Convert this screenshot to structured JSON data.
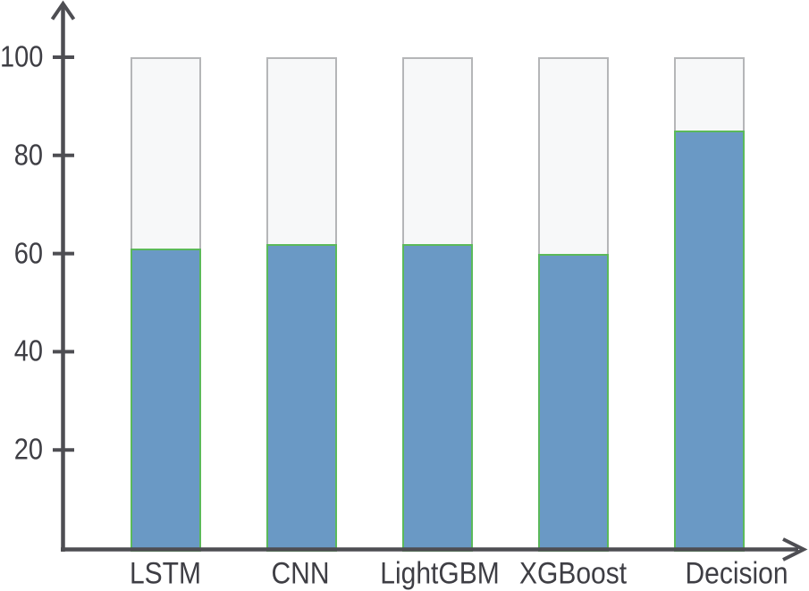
{
  "chart_data": {
    "type": "bar",
    "title": "",
    "xlabel": "",
    "ylabel": "",
    "categories": [
      "LSTM",
      "CNN",
      "LightGBM",
      "XGBoost",
      "Decision"
    ],
    "values": [
      61,
      62,
      62,
      60,
      85
    ],
    "background_bar_value": 100,
    "yticks": [
      20,
      40,
      60,
      80,
      100
    ],
    "ylim": [
      0,
      100
    ],
    "grid": false,
    "legend": null,
    "colors": {
      "bar_fill": "#6A99C5",
      "bar_border": "#5BB95A",
      "empty_fill": "#F7F8F9",
      "empty_border": "#B5B6B8",
      "axis": "#4E4E53",
      "label_text": "#3E3E44",
      "background": "#FFFFFF"
    }
  }
}
